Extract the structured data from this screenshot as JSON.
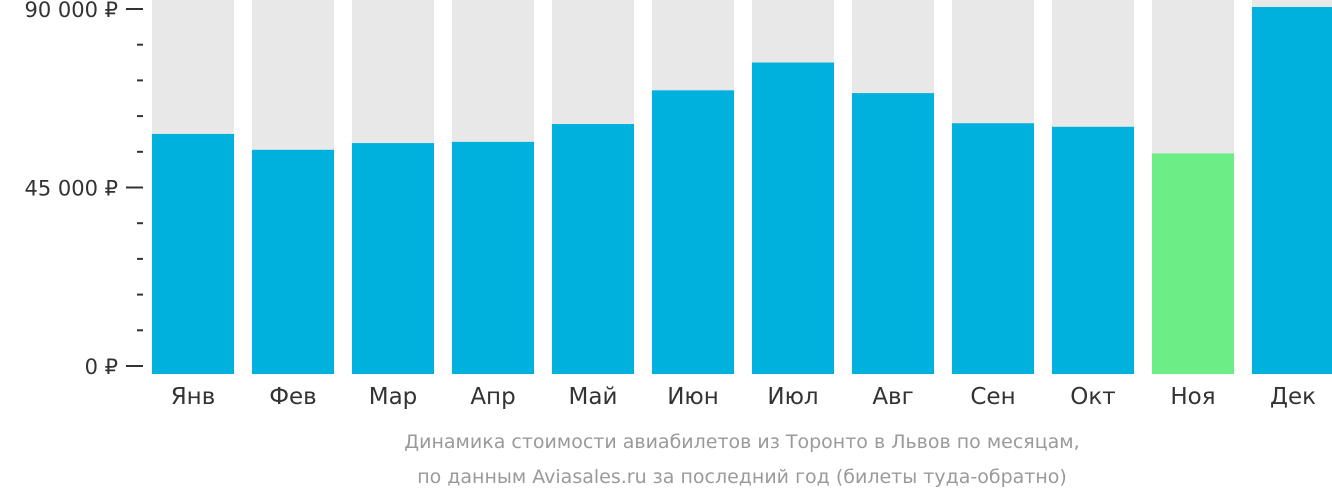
{
  "chart_data": {
    "type": "bar",
    "categories": [
      "Янв",
      "Фев",
      "Мар",
      "Апр",
      "Май",
      "Июн",
      "Июл",
      "Авг",
      "Сен",
      "Окт",
      "Ноя",
      "Дек"
    ],
    "values": [
      58500,
      54500,
      56200,
      56500,
      61000,
      69500,
      76500,
      68800,
      61200,
      60300,
      53600,
      90500
    ],
    "highlight_index": 10,
    "ylim": [
      0,
      90000
    ],
    "y_ticks": [
      0,
      45000,
      90000
    ],
    "y_tick_labels": [
      "0 ₽",
      "45 000 ₽",
      "90 000 ₽"
    ],
    "colors": {
      "bar": "#00b0dd",
      "highlight": "#6ced86",
      "background_bar": "#e8e8e8",
      "axis": "#333333",
      "caption": "#9a9a9a"
    }
  },
  "caption": {
    "line1": "Динамика стоимости авиабилетов из Торонто в Львов по месяцам,",
    "line2": "по данным Aviasales.ru за последний год (билеты туда-обратно)"
  }
}
